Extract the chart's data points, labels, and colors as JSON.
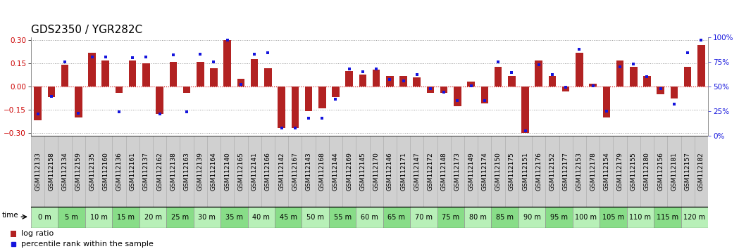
{
  "title": "GDS2350 / YGR282C",
  "samples": [
    "GSM112133",
    "GSM112158",
    "GSM112134",
    "GSM112159",
    "GSM112135",
    "GSM112160",
    "GSM112136",
    "GSM112161",
    "GSM112137",
    "GSM112162",
    "GSM112138",
    "GSM112163",
    "GSM112139",
    "GSM112164",
    "GSM112140",
    "GSM112165",
    "GSM112141",
    "GSM112166",
    "GSM112142",
    "GSM112167",
    "GSM112143",
    "GSM112168",
    "GSM112144",
    "GSM112169",
    "GSM112145",
    "GSM112170",
    "GSM112146",
    "GSM112171",
    "GSM112147",
    "GSM112172",
    "GSM112148",
    "GSM112173",
    "GSM112149",
    "GSM112174",
    "GSM112150",
    "GSM112175",
    "GSM112151",
    "GSM112176",
    "GSM112152",
    "GSM112177",
    "GSM112153",
    "GSM112178",
    "GSM112154",
    "GSM112179",
    "GSM112155",
    "GSM112180",
    "GSM112156",
    "GSM112181",
    "GSM112157",
    "GSM112182"
  ],
  "time_labels": [
    "0 m",
    "5 m",
    "10 m",
    "15 m",
    "20 m",
    "25 m",
    "30 m",
    "35 m",
    "40 m",
    "45 m",
    "50 m",
    "55 m",
    "60 m",
    "65 m",
    "70 m",
    "75 m",
    "80 m",
    "85 m",
    "90 m",
    "95 m",
    "100 m",
    "105 m",
    "110 m",
    "115 m",
    "120 m"
  ],
  "log_ratio": [
    -0.22,
    -0.07,
    0.14,
    -0.2,
    0.22,
    0.17,
    -0.04,
    0.17,
    0.15,
    -0.18,
    0.16,
    -0.04,
    0.16,
    0.12,
    0.3,
    0.05,
    0.18,
    0.12,
    -0.27,
    -0.27,
    -0.16,
    -0.14,
    -0.07,
    0.1,
    0.08,
    0.11,
    0.07,
    0.07,
    0.06,
    -0.04,
    -0.04,
    -0.13,
    0.03,
    -0.11,
    0.13,
    0.07,
    -0.3,
    0.17,
    0.07,
    -0.03,
    0.22,
    0.02,
    -0.2,
    0.17,
    0.13,
    0.07,
    -0.05,
    -0.08,
    0.13,
    0.27
  ],
  "percentile": [
    22,
    40,
    75,
    23,
    80,
    80,
    24,
    79,
    80,
    22,
    82,
    24,
    83,
    75,
    97,
    52,
    83,
    84,
    8,
    8,
    18,
    18,
    37,
    68,
    65,
    68,
    57,
    56,
    62,
    48,
    44,
    36,
    51,
    36,
    75,
    64,
    5,
    72,
    62,
    49,
    88,
    51,
    25,
    70,
    73,
    60,
    48,
    32,
    84,
    97
  ],
  "bar_color": "#b22222",
  "dot_color": "#1515dd",
  "bg_color": "#ffffff",
  "grid_color": "#999999",
  "zero_line_color": "#cc0000",
  "ylim": [
    -0.32,
    0.32
  ],
  "yticks_left": [
    -0.3,
    -0.15,
    0.0,
    0.15,
    0.3
  ],
  "yticks_right_pct": [
    0,
    25,
    50,
    75,
    100
  ],
  "title_fontsize": 11,
  "label_fontsize": 6.5,
  "tick_fontsize": 7.5,
  "time_bg_light": "#b8f0b8",
  "time_bg_dark": "#88dd88",
  "sample_bg": "#d0d0d0",
  "time_fontsize": 7,
  "bar_width": 0.55
}
